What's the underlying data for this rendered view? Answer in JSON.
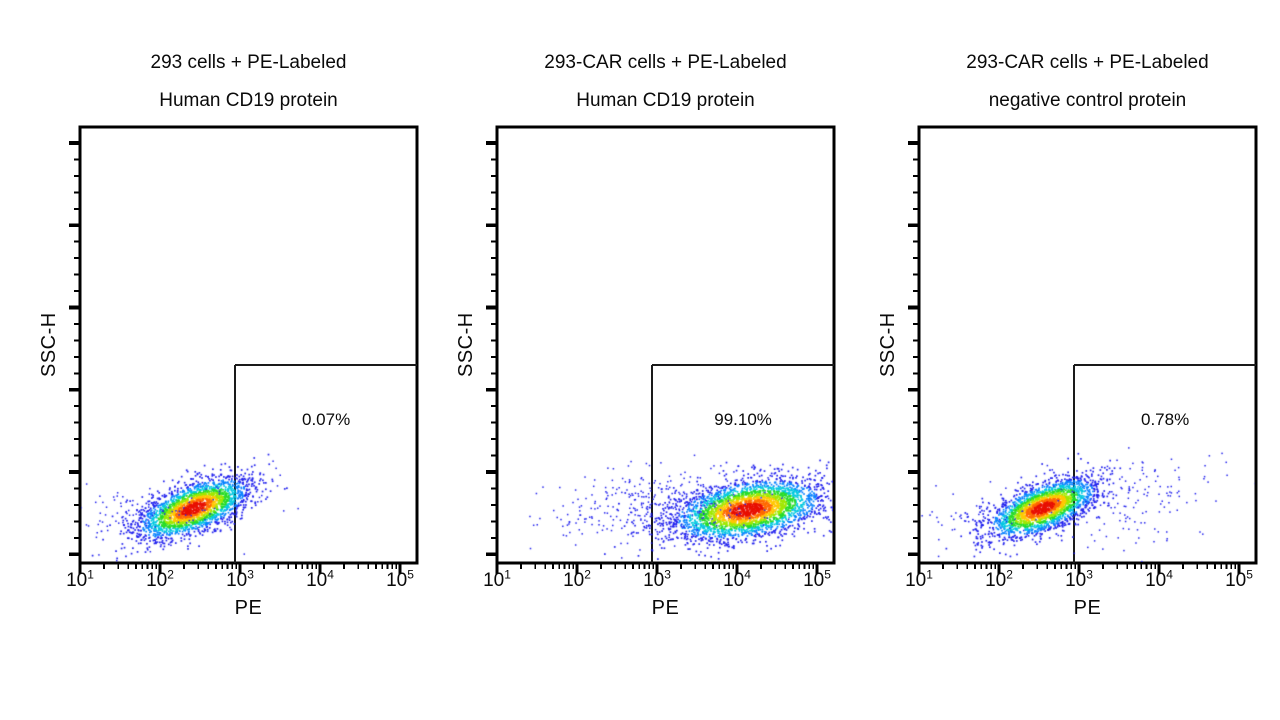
{
  "figure": {
    "background": "#ffffff",
    "axis_color": "#000000",
    "gate_color": "#1a1a1a",
    "text_color": "#0a0a0a",
    "density_palette": {
      "thresholds": [
        0.42,
        0.65,
        0.85,
        1.05,
        1.28,
        1.55,
        1.85
      ],
      "colors": [
        "#e81000",
        "#ff6a00",
        "#ffc800",
        "#a0e800",
        "#28dc28",
        "#00c8e0",
        "#0882ff",
        "#2222ee"
      ],
      "sparse_color": "#2222ee"
    }
  },
  "axes": {
    "x_label": "PE",
    "y_label": "SSC-H",
    "x_scale": "log10",
    "x_tick_base": "10",
    "x_tick_exponents": [
      "1",
      "2",
      "3",
      "4",
      "5"
    ]
  },
  "chart_data": [
    {
      "type": "scatter",
      "title_line1": "293 cells + PE-Labeled",
      "title_line2": "Human CD19 protein",
      "xlabel": "PE",
      "ylabel": "SSC-H",
      "x_range_log10": [
        1,
        5.21
      ],
      "gate": {
        "percent_label": "0.07%",
        "pe_log10_min": 2.94,
        "ssc_top_fraction": 0.454
      },
      "clusters": [
        {
          "kind": "density",
          "pe_log10": 2.42,
          "ssc_fraction": 0.125,
          "sigma_log10": 0.375,
          "sigma_ssc": 0.026,
          "tilt_deg": -22,
          "n": 2500
        },
        {
          "kind": "sparse",
          "pe_log10": 1.9,
          "ssc_fraction": 0.105,
          "sigma_log10": 0.56,
          "sigma_ssc": 0.037,
          "tilt_deg": 0,
          "n": 110
        },
        {
          "kind": "sparse",
          "pe_log10": 3.3,
          "ssc_fraction": 0.16,
          "sigma_log10": 0.3,
          "sigma_ssc": 0.055,
          "tilt_deg": 0,
          "n": 12
        }
      ]
    },
    {
      "type": "scatter",
      "title_line1": "293-CAR cells + PE-Labeled",
      "title_line2": "Human CD19 protein",
      "xlabel": "PE",
      "ylabel": "SSC-H",
      "x_range_log10": [
        1,
        5.21
      ],
      "gate": {
        "percent_label": "99.10%",
        "pe_log10_min": 2.94,
        "ssc_top_fraction": 0.454
      },
      "clusters": [
        {
          "kind": "density",
          "pe_log10": 4.13,
          "ssc_fraction": 0.122,
          "sigma_log10": 0.475,
          "sigma_ssc": 0.032,
          "tilt_deg": -10,
          "n": 3200
        },
        {
          "kind": "sparse",
          "pe_log10": 3.1,
          "ssc_fraction": 0.133,
          "sigma_log10": 0.62,
          "sigma_ssc": 0.046,
          "tilt_deg": -5,
          "n": 320
        },
        {
          "kind": "sparse",
          "pe_log10": 2.19,
          "ssc_fraction": 0.094,
          "sigma_log10": 0.31,
          "sigma_ssc": 0.028,
          "tilt_deg": 0,
          "n": 30
        }
      ]
    },
    {
      "type": "scatter",
      "title_line1": "293-CAR cells + PE-Labeled",
      "title_line2": "negative control protein",
      "xlabel": "PE",
      "ylabel": "SSC-H",
      "x_range_log10": [
        1,
        5.21
      ],
      "gate": {
        "percent_label": "0.78%",
        "pe_log10_min": 2.94,
        "ssc_top_fraction": 0.454
      },
      "clusters": [
        {
          "kind": "density",
          "pe_log10": 2.55,
          "ssc_fraction": 0.126,
          "sigma_log10": 0.3625,
          "sigma_ssc": 0.025,
          "tilt_deg": -22,
          "n": 2400
        },
        {
          "kind": "sparse",
          "pe_log10": 1.69,
          "ssc_fraction": 0.101,
          "sigma_log10": 0.375,
          "sigma_ssc": 0.03,
          "tilt_deg": 0,
          "n": 60
        },
        {
          "kind": "sparse",
          "pe_log10": 3.69,
          "ssc_fraction": 0.133,
          "sigma_log10": 0.6,
          "sigma_ssc": 0.055,
          "tilt_deg": -5,
          "n": 150
        },
        {
          "kind": "sparse",
          "pe_log10": 4.75,
          "ssc_fraction": 0.186,
          "sigma_log10": 0.19,
          "sigma_ssc": 0.027,
          "tilt_deg": 0,
          "n": 4
        }
      ]
    }
  ]
}
